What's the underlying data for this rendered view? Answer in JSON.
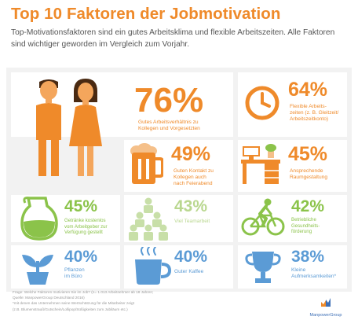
{
  "title": "Top 10 Faktoren der Jobmotivation",
  "subtitle": "Top-Motivationsfaktoren sind ein gutes Arbeitsklima und flexible Arbeitszeiten. Alle Faktoren sind wichtiger geworden im Vergleich zum Vorjahr.",
  "colors": {
    "orange": "#ef8a2a",
    "green": "#8bc34a",
    "blue": "#5b9bd5",
    "panel": "#f2f2f2"
  },
  "factors": [
    {
      "value": "76%",
      "label": "Gutes Arbeitsverhältnis zu\nKollegen und Vorgesetzten",
      "icon": "man-woman-icon"
    },
    {
      "value": "64%",
      "label": "Flexible Arbeits-\nzeiten (z. B. Gleitzeit/\nArbeitszeitkonto)",
      "icon": "clock-icon"
    },
    {
      "value": "49%",
      "label": "Guten Kontakt zu\nKollegen auch\nnach Feierabend",
      "icon": "beer-mug-icon"
    },
    {
      "value": "45%",
      "label": "Ansprechende\nRaumgestaltung",
      "icon": "desk-icon"
    },
    {
      "value": "45%",
      "label": "Getränke kostenlos\nvom Arbeitgeber zur\nVerfügung gestellt",
      "icon": "water-jug-icon"
    },
    {
      "value": "43%",
      "label": "Viel Teamarbeit",
      "icon": "team-pyramid-icon"
    },
    {
      "value": "42%",
      "label": "Betriebliche\nGesundheits-\nförderung",
      "icon": "cyclist-icon"
    },
    {
      "value": "40%",
      "label": "Pflanzen\nim Büro",
      "icon": "plant-icon"
    },
    {
      "value": "40%",
      "label": "Guter Kaffee",
      "icon": "coffee-cup-icon"
    },
    {
      "value": "38%",
      "label": "Kleine\nAufmerksamkeiten*",
      "icon": "trophy-icon"
    }
  ],
  "footer": "Frage: Welche Faktoren motivieren Sie im Job? (n= 1.013 Arbeitnehmer ab 18 Jahren;\nQuelle: ManpowerGroup Deutschland 2016)\n*mit denen das Unternehmen seine Wertschätzung für die Mitarbeiter zeigt\n(z.B. Blumenstrauß/Gutschein/Lollipop/Süßigkeiten zum Jubiläum etc.)",
  "brand": {
    "name": "ManpowerGroup",
    "icon": "manpower-logo-icon"
  }
}
